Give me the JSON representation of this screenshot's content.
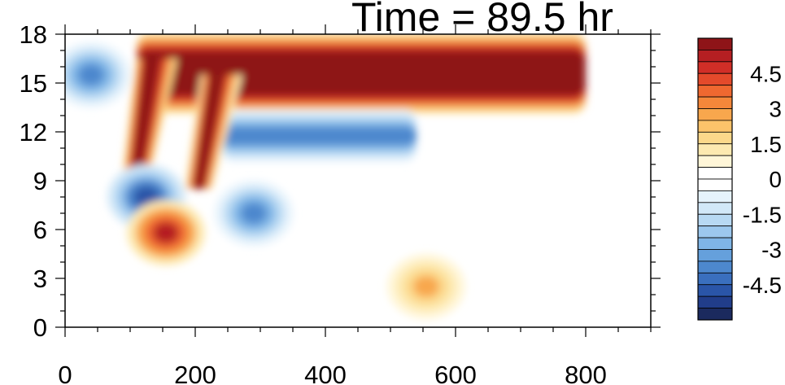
{
  "chart_data": {
    "type": "heatmap",
    "title": "Time = 89.5 hr",
    "xlabel": "",
    "ylabel": "",
    "xlim": [
      0,
      900
    ],
    "ylim": [
      0,
      18
    ],
    "x_ticks": [
      0,
      200,
      400,
      600,
      800
    ],
    "y_ticks": [
      0,
      3,
      6,
      9,
      12,
      15,
      18
    ],
    "grid": false,
    "colorbar": {
      "placement": "right",
      "range": [
        -6,
        6
      ],
      "step": 0.5,
      "labels": [
        4.5,
        3,
        1.5,
        0,
        -1.5,
        -3,
        -4.5
      ],
      "labels_text": [
        "4.5",
        "3",
        "1.5",
        "0",
        "-1.5",
        "-3",
        "-4.5"
      ],
      "colors": [
        "#1b2a5e",
        "#213d8a",
        "#2a55a8",
        "#3a6fbe",
        "#4d88ce",
        "#65a0dc",
        "#7fb5e6",
        "#9cc8ee",
        "#b8d9f3",
        "#d2e8f8",
        "#e6f3fc",
        "#ffffff",
        "#ffffff",
        "#fff6d8",
        "#fde9b0",
        "#fcd88a",
        "#fbc36a",
        "#f8a74d",
        "#f4873a",
        "#ef6830",
        "#e44a2b",
        "#d12e27",
        "#b51f22",
        "#8e1418"
      ]
    },
    "features": [
      {
        "shape": "band",
        "x": [
          110,
          800
        ],
        "y": [
          14.2,
          17.0
        ],
        "value": 6,
        "desc": "strong positive layer"
      },
      {
        "shape": "band",
        "x": [
          240,
          540
        ],
        "y": [
          11.2,
          12.3
        ],
        "value": -4,
        "desc": "negative layer below"
      },
      {
        "shape": "tilted",
        "x0": 110,
        "y0": 9.5,
        "x1": 130,
        "y1": 16.5,
        "value": 6
      },
      {
        "shape": "tilted",
        "x0": 205,
        "y0": 8.5,
        "x1": 230,
        "y1": 15.5,
        "value": 5.5
      },
      {
        "shape": "blob",
        "x": 125,
        "y": 8.0,
        "value": -5
      },
      {
        "shape": "blob",
        "x": 155,
        "y": 5.8,
        "value": 5
      },
      {
        "shape": "blob",
        "x": 290,
        "y": 7.0,
        "value": -4
      },
      {
        "shape": "blob",
        "x": 40,
        "y": 15.5,
        "value": -4
      },
      {
        "shape": "blob",
        "x": 555,
        "y": 2.5,
        "value": 2.5
      }
    ]
  }
}
